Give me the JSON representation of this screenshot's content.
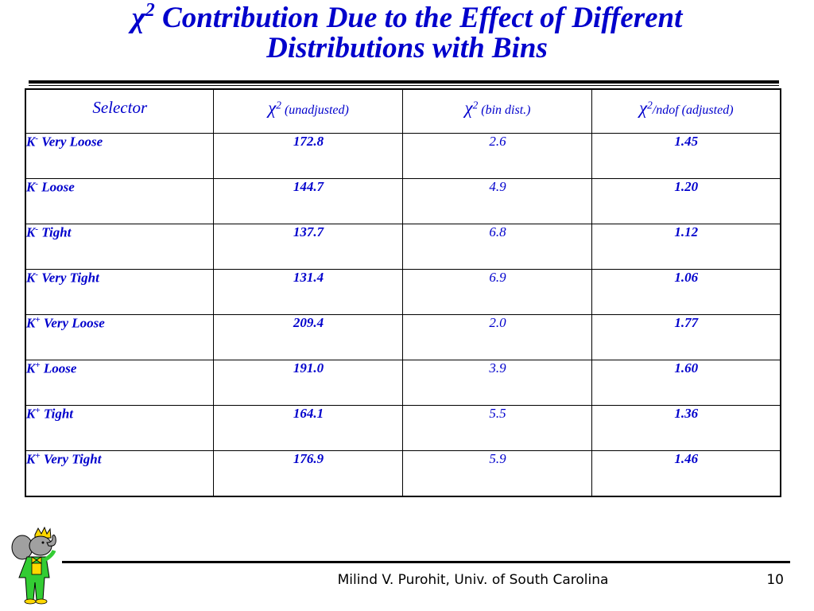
{
  "title": {
    "symbol": "χ",
    "superscript": "2",
    "line1_rest": " Contribution Due to the Effect of Different",
    "line2": "Distributions with Bins"
  },
  "table": {
    "headers": {
      "selector": "Selector",
      "col2_symbol": "χ",
      "col2_sup": "2",
      "col2_label": " (unadjusted)",
      "col3_symbol": "χ",
      "col3_sup": "2",
      "col3_label": " (bin dist.)",
      "col4_symbol": "χ",
      "col4_sup": "2",
      "col4_label": "/ndof (adjusted)"
    },
    "rows": [
      {
        "particle": "K",
        "charge": "-",
        "label": " Very Loose",
        "unadjusted": "172.8",
        "bin_dist": "2.6",
        "adjusted": "1.45"
      },
      {
        "particle": "K",
        "charge": "-",
        "label": " Loose",
        "unadjusted": "144.7",
        "bin_dist": "4.9",
        "adjusted": "1.20"
      },
      {
        "particle": "K",
        "charge": "-",
        "label": " Tight",
        "unadjusted": "137.7",
        "bin_dist": "6.8",
        "adjusted": "1.12"
      },
      {
        "particle": "K",
        "charge": "-",
        "label": " Very Tight",
        "unadjusted": "131.4",
        "bin_dist": "6.9",
        "adjusted": "1.06"
      },
      {
        "particle": "K",
        "charge": "+",
        "label": " Very Loose",
        "unadjusted": "209.4",
        "bin_dist": "2.0",
        "adjusted": "1.77"
      },
      {
        "particle": "K",
        "charge": "+",
        "label": " Loose",
        "unadjusted": "191.0",
        "bin_dist": "3.9",
        "adjusted": "1.60"
      },
      {
        "particle": "K",
        "charge": "+",
        "label": " Tight",
        "unadjusted": "164.1",
        "bin_dist": "5.5",
        "adjusted": "1.36"
      },
      {
        "particle": "K",
        "charge": "+",
        "label": " Very Tight",
        "unadjusted": "176.9",
        "bin_dist": "5.9",
        "adjusted": "1.46"
      }
    ]
  },
  "footer": {
    "author": "Milind V. Purohit, Univ. of South Carolina",
    "page_number": "10"
  },
  "colors": {
    "text_blue": "#0000cc",
    "mascot_green": "#33cc33",
    "mascot_gray": "#a0a0a0",
    "mascot_yellow": "#ffd800"
  },
  "icons": {
    "mascot": "elephant-mascot-icon"
  }
}
